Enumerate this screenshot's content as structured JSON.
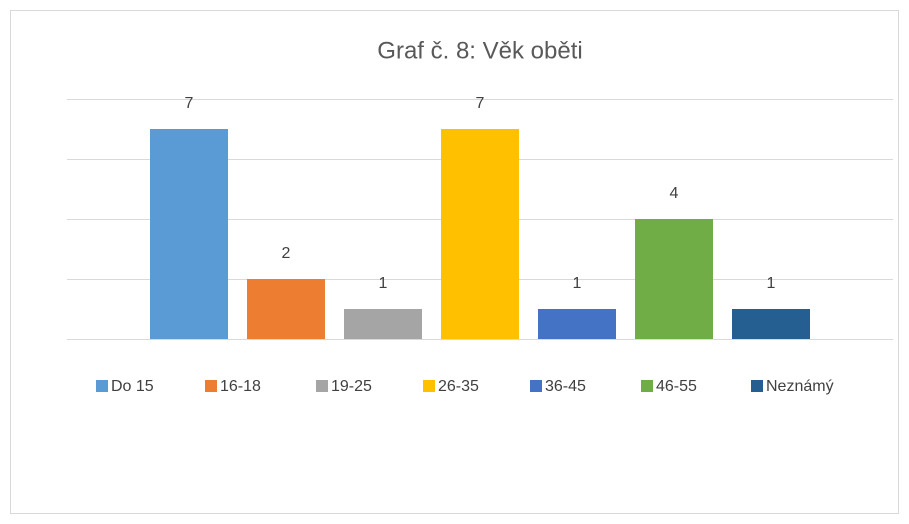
{
  "chart_data": {
    "type": "bar",
    "title": "Graf č. 8: Věk oběti",
    "categories": [
      "Do 15",
      "16-18",
      "19-25",
      "26-35",
      "36-45",
      "46-55",
      "Neznámý"
    ],
    "values": [
      7,
      2,
      1,
      7,
      1,
      4,
      1
    ],
    "colors": [
      "#5b9bd5",
      "#ed7d31",
      "#a5a5a5",
      "#ffc000",
      "#4472c4",
      "#70ad47",
      "#255e91"
    ],
    "ylim": [
      0,
      8
    ],
    "yticks": [
      0,
      2,
      4,
      6,
      8
    ],
    "grid": true,
    "legend": "bottom"
  }
}
